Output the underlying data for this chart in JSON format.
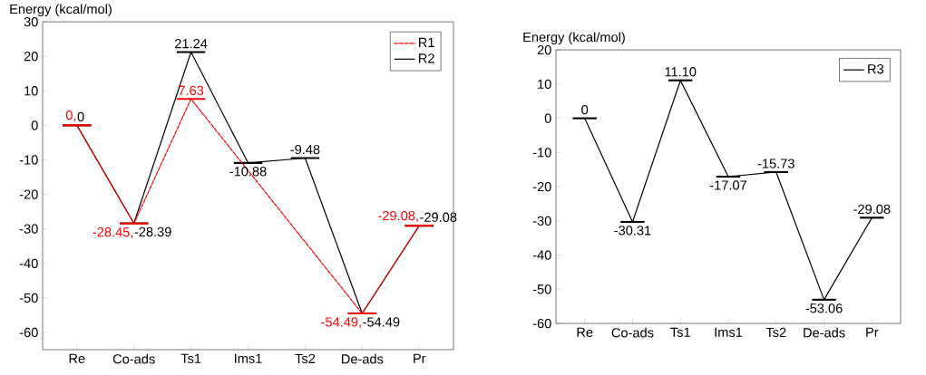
{
  "chart_data": [
    {
      "type": "line",
      "categories": [
        "Re",
        "Co-ads",
        "Ts1",
        "Ims1",
        "Ts2",
        "De-ads",
        "Pr"
      ],
      "ylabel": "Energy (kcal/mol)",
      "ylim": [
        -65,
        30
      ],
      "yticks": [
        -60,
        -50,
        -40,
        -30,
        -20,
        -10,
        0,
        10,
        20,
        30
      ],
      "legend": "top right",
      "series": [
        {
          "name": "R1",
          "color": "#ff0000",
          "line_style": "dashed",
          "values": [
            0,
            -28.45,
            7.63,
            null,
            null,
            -54.49,
            -29.08
          ],
          "value_labels": [
            "0,",
            "-28.45,",
            "7.63",
            null,
            null,
            "-54.49,",
            "-29.08,"
          ]
        },
        {
          "name": "R2",
          "color": "#000000",
          "line_style": "solid",
          "values": [
            0,
            -28.39,
            21.24,
            -10.88,
            -9.48,
            -54.49,
            -29.08
          ],
          "value_labels": [
            "0",
            "-28.39",
            "21.24",
            "-10.88",
            "-9.48",
            "-54.49",
            "-29.08"
          ]
        }
      ]
    },
    {
      "type": "line",
      "categories": [
        "Re",
        "Co-ads",
        "Ts1",
        "Ims1",
        "Ts2",
        "De-ads",
        "Pr"
      ],
      "ylabel": "Energy (kcal/mol)",
      "ylim": [
        -60,
        20
      ],
      "yticks": [
        -60,
        -50,
        -40,
        -30,
        -20,
        -10,
        0,
        10,
        20
      ],
      "legend": "top right",
      "series": [
        {
          "name": "R3",
          "color": "#000000",
          "line_style": "solid",
          "values": [
            0,
            -30.31,
            11.1,
            -17.07,
            -15.73,
            -53.06,
            -29.08
          ],
          "value_labels": [
            "0",
            "-30.31",
            "11.10",
            "-17.07",
            "-15.73",
            "-53.06",
            "-29.08"
          ]
        }
      ]
    }
  ]
}
